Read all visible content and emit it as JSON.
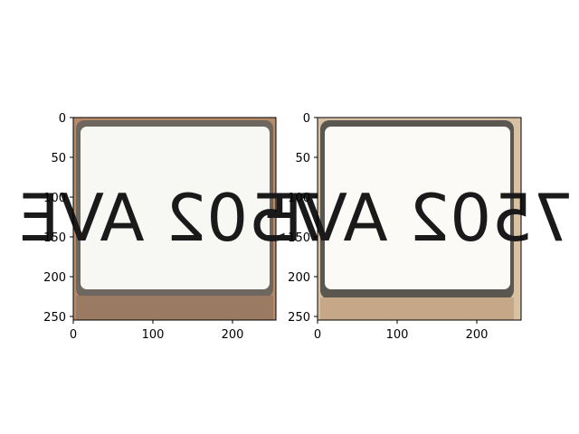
{
  "figure": {
    "panels": [
      {
        "name": "left",
        "plate_text": "7502 AVE",
        "colors": {
          "background": "#b98a68",
          "frame": "#6d6760",
          "plate": "#f7f7f4",
          "text": "#1b1b1b"
        },
        "x_ticks": [
          "0",
          "100",
          "200"
        ],
        "y_ticks": [
          "0",
          "50",
          "100",
          "150",
          "200",
          "250"
        ]
      },
      {
        "name": "right",
        "plate_text": "7502 AVE",
        "colors": {
          "background": "#d9c1a3",
          "frame": "#5a5650",
          "plate": "#fbfaf6",
          "text": "#1b1b1b"
        },
        "x_ticks": [
          "0",
          "100",
          "200"
        ],
        "y_ticks": [
          "0",
          "50",
          "100",
          "150",
          "200",
          "250"
        ]
      }
    ]
  }
}
